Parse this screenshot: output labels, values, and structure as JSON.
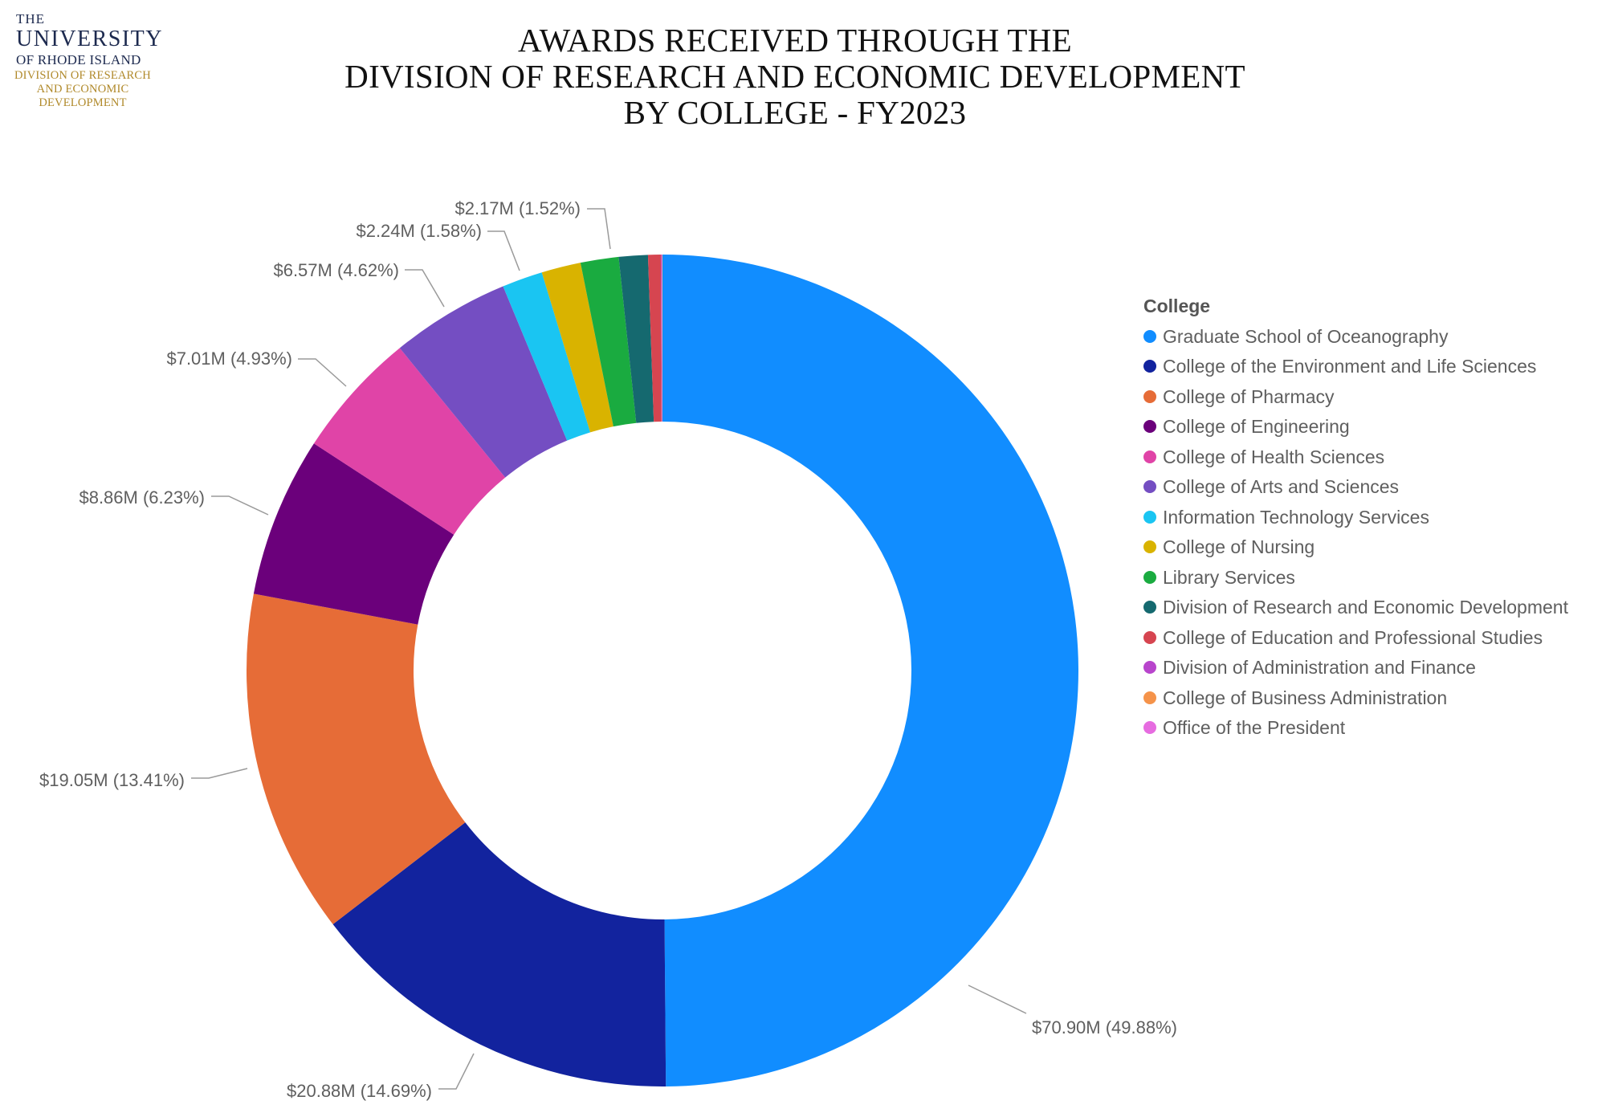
{
  "logo": {
    "line1": "THE",
    "line2": "UNIVERSITY",
    "line3": "OF RHODE ISLAND",
    "line4": "DIVISION OF RESEARCH",
    "line5": "AND ECONOMIC",
    "line6": "DEVELOPMENT"
  },
  "chart_data": {
    "type": "pie",
    "title": [
      "AWARDS RECEIVED THROUGH THE",
      "DIVISION OF RESEARCH AND ECONOMIC DEVELOPMENT",
      "BY COLLEGE - FY2023"
    ],
    "donut": true,
    "legend_title": "College",
    "legend_position": "right",
    "slices": [
      {
        "name": "Graduate School of Oceanography",
        "value": 70.9,
        "percent": 49.88,
        "label": "$70.90M (49.88%)",
        "color": "#118DFF"
      },
      {
        "name": "College of the Environment and Life Sciences",
        "value": 20.88,
        "percent": 14.69,
        "label": "$20.88M (14.69%)",
        "color": "#12239E"
      },
      {
        "name": "College of Pharmacy",
        "value": 19.05,
        "percent": 13.41,
        "label": "$19.05M (13.41%)",
        "color": "#E66C37"
      },
      {
        "name": "College of Engineering",
        "value": 8.86,
        "percent": 6.23,
        "label": "$8.86M (6.23%)",
        "color": "#6B007B"
      },
      {
        "name": "College of Health Sciences",
        "value": 7.01,
        "percent": 4.93,
        "label": "$7.01M (4.93%)",
        "color": "#E044A7"
      },
      {
        "name": "College of Arts and Sciences",
        "value": 6.57,
        "percent": 4.62,
        "label": "$6.57M (4.62%)",
        "color": "#744EC2"
      },
      {
        "name": "Information Technology Services",
        "value": 2.24,
        "percent": 1.58,
        "label": "$2.24M (1.58%)",
        "color": "#1AC5F2"
      },
      {
        "name": "College of Nursing",
        "value": 2.17,
        "percent": 1.52,
        "label": "$2.17M (1.52%)",
        "color": "#D9B300"
      },
      {
        "name": "Library Services",
        "value": 2.1,
        "percent": 1.48,
        "label": "",
        "color": "#1AAB40"
      },
      {
        "name": "Division of Research and Economic Development",
        "value": 1.6,
        "percent": 1.13,
        "label": "",
        "color": "#15696F"
      },
      {
        "name": "College of Education and Professional Studies",
        "value": 0.7,
        "percent": 0.49,
        "label": "",
        "color": "#D64550"
      },
      {
        "name": "Division of Administration and Finance",
        "value": 0.05,
        "percent": 0.04,
        "label": "",
        "color": "#B845CC"
      },
      {
        "name": "College of Business Administration",
        "value": 0.03,
        "percent": 0.02,
        "label": "",
        "color": "#F5934A"
      },
      {
        "name": "Office of the President",
        "value": 0.01,
        "percent": 0.01,
        "label": "",
        "color": "#E66CE0"
      }
    ]
  }
}
